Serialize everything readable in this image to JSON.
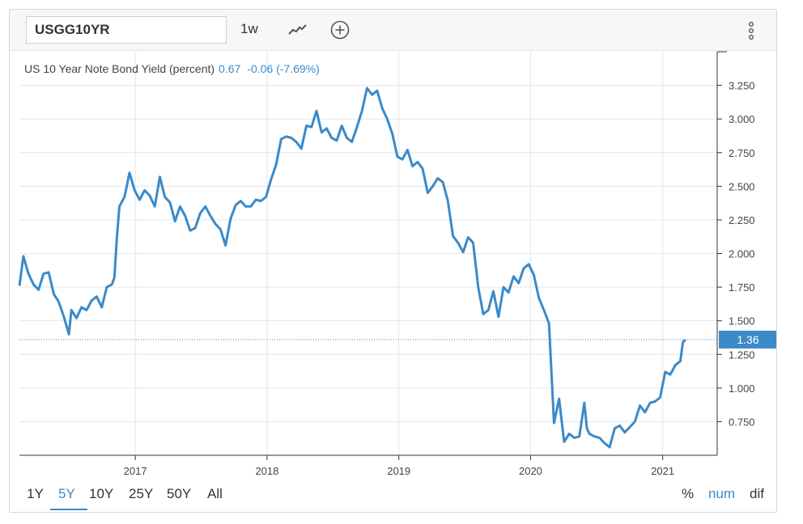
{
  "toolbar": {
    "ticker": "USGG10YR",
    "interval": "1w"
  },
  "legend": {
    "series_name": "US 10 Year Note Bond Yield (percent)",
    "value": "0.67",
    "change": "-0.06 (-7.69%)"
  },
  "last_value_label": "1.36",
  "ranges": [
    "1Y",
    "5Y",
    "10Y",
    "25Y",
    "50Y",
    "All"
  ],
  "active_range": "5Y",
  "modes": [
    "%",
    "num",
    "dif"
  ],
  "active_mode": "num",
  "colors": {
    "line": "#3b8ac9",
    "accent": "#3b8ac9",
    "grid": "#e6e6e6"
  },
  "chart_data": {
    "type": "line",
    "title": "",
    "xlabel": "",
    "ylabel": "",
    "x_ticks": [
      "2017",
      "2018",
      "2019",
      "2020",
      "2021"
    ],
    "y_ticks": [
      "0.750",
      "1.000",
      "1.250",
      "1.500",
      "1.750",
      "2.000",
      "2.250",
      "2.500",
      "2.750",
      "3.000",
      "3.250"
    ],
    "ylim": [
      0.5,
      3.5
    ],
    "xlim": [
      "2016-02-15",
      "2021-06-01"
    ],
    "grid": true,
    "last_value": 1.36,
    "series": [
      {
        "x": [
          "2016-02-15",
          "2016-02-26",
          "2016-03-11",
          "2016-03-25",
          "2016-04-08",
          "2016-04-22",
          "2016-05-06",
          "2016-05-20",
          "2016-06-03",
          "2016-06-17",
          "2016-07-01",
          "2016-07-08",
          "2016-07-22",
          "2016-08-05",
          "2016-08-19",
          "2016-09-02",
          "2016-09-16",
          "2016-09-30",
          "2016-10-14",
          "2016-10-28",
          "2016-11-04",
          "2016-11-11",
          "2016-11-18",
          "2016-12-02",
          "2016-12-16",
          "2016-12-30",
          "2017-01-13",
          "2017-01-27",
          "2017-02-10",
          "2017-02-24",
          "2017-03-10",
          "2017-03-24",
          "2017-04-07",
          "2017-04-21",
          "2017-05-05",
          "2017-05-19",
          "2017-06-02",
          "2017-06-16",
          "2017-06-30",
          "2017-07-14",
          "2017-07-28",
          "2017-08-11",
          "2017-08-25",
          "2017-09-08",
          "2017-09-22",
          "2017-10-06",
          "2017-10-20",
          "2017-11-03",
          "2017-11-17",
          "2017-12-01",
          "2017-12-15",
          "2017-12-29",
          "2018-01-12",
          "2018-01-26",
          "2018-02-09",
          "2018-02-23",
          "2018-03-09",
          "2018-03-23",
          "2018-04-06",
          "2018-04-20",
          "2018-05-04",
          "2018-05-18",
          "2018-06-01",
          "2018-06-15",
          "2018-06-29",
          "2018-07-13",
          "2018-07-27",
          "2018-08-10",
          "2018-08-24",
          "2018-09-07",
          "2018-09-21",
          "2018-10-05",
          "2018-10-19",
          "2018-11-02",
          "2018-11-16",
          "2018-11-30",
          "2018-12-14",
          "2018-12-28",
          "2019-01-11",
          "2019-01-25",
          "2019-02-08",
          "2019-02-22",
          "2019-03-08",
          "2019-03-22",
          "2019-04-05",
          "2019-04-19",
          "2019-05-03",
          "2019-05-17",
          "2019-05-31",
          "2019-06-14",
          "2019-06-28",
          "2019-07-12",
          "2019-07-26",
          "2019-08-09",
          "2019-08-23",
          "2019-09-06",
          "2019-09-20",
          "2019-10-04",
          "2019-10-18",
          "2019-11-01",
          "2019-11-15",
          "2019-11-29",
          "2019-12-13",
          "2019-12-27",
          "2020-01-10",
          "2020-01-24",
          "2020-02-07",
          "2020-02-21",
          "2020-03-06",
          "2020-03-20",
          "2020-04-03",
          "2020-04-17",
          "2020-05-01",
          "2020-05-15",
          "2020-05-29",
          "2020-06-05",
          "2020-06-12",
          "2020-06-26",
          "2020-07-10",
          "2020-07-24",
          "2020-08-07",
          "2020-08-21",
          "2020-09-04",
          "2020-09-18",
          "2020-10-02",
          "2020-10-16",
          "2020-10-30",
          "2020-11-13",
          "2020-11-27",
          "2020-12-11",
          "2020-12-25",
          "2021-01-08",
          "2021-01-22",
          "2021-02-05",
          "2021-02-19",
          "2021-02-26",
          "2021-03-05"
        ],
        "values": [
          1.76,
          1.98,
          1.85,
          1.77,
          1.73,
          1.85,
          1.86,
          1.7,
          1.64,
          1.53,
          1.4,
          1.58,
          1.52,
          1.6,
          1.58,
          1.65,
          1.68,
          1.6,
          1.75,
          1.77,
          1.82,
          2.12,
          2.35,
          2.42,
          2.6,
          2.47,
          2.4,
          2.47,
          2.43,
          2.35,
          2.57,
          2.42,
          2.38,
          2.24,
          2.35,
          2.28,
          2.17,
          2.19,
          2.3,
          2.35,
          2.28,
          2.22,
          2.18,
          2.06,
          2.26,
          2.36,
          2.39,
          2.35,
          2.35,
          2.4,
          2.39,
          2.42,
          2.55,
          2.66,
          2.85,
          2.87,
          2.86,
          2.83,
          2.78,
          2.95,
          2.94,
          3.06,
          2.9,
          2.93,
          2.86,
          2.84,
          2.95,
          2.86,
          2.83,
          2.94,
          3.06,
          3.23,
          3.18,
          3.21,
          3.08,
          3.0,
          2.89,
          2.72,
          2.7,
          2.77,
          2.65,
          2.68,
          2.63,
          2.45,
          2.5,
          2.56,
          2.53,
          2.39,
          2.13,
          2.08,
          2.01,
          2.12,
          2.08,
          1.75,
          1.55,
          1.58,
          1.72,
          1.53,
          1.75,
          1.71,
          1.83,
          1.78,
          1.89,
          1.92,
          1.84,
          1.67,
          1.58,
          1.48,
          0.74,
          0.92,
          0.6,
          0.66,
          0.63,
          0.64,
          0.89,
          0.7,
          0.66,
          0.64,
          0.63,
          0.59,
          0.56,
          0.7,
          0.72,
          0.67,
          0.71,
          0.75,
          0.87,
          0.82,
          0.89,
          0.9,
          0.93,
          1.12,
          1.1,
          1.17,
          1.2,
          1.34,
          1.36
        ]
      }
    ]
  }
}
